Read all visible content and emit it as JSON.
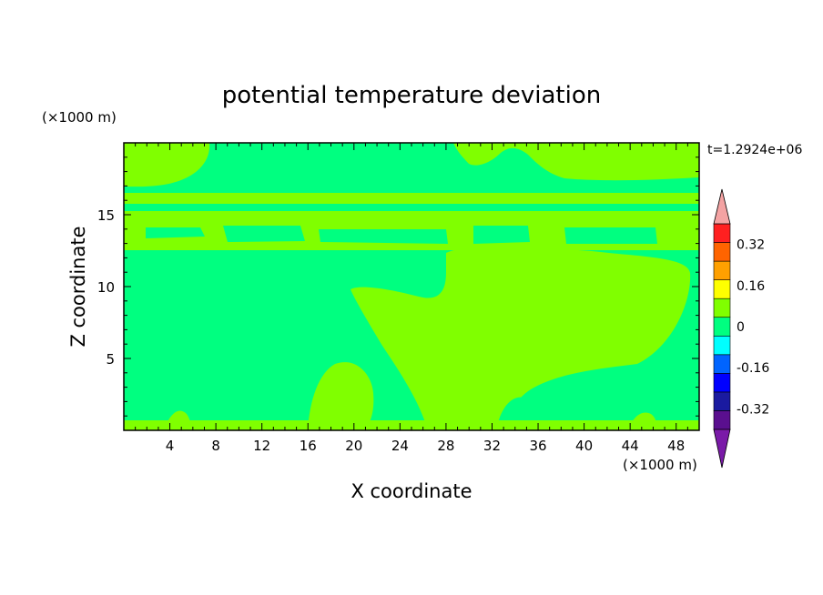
{
  "chart_data": {
    "type": "heatmap",
    "title": "potential temperature deviation",
    "xlabel": "X coordinate",
    "ylabel": "Z coordinate",
    "x_unit": "(×1000 m)",
    "y_unit": "(×1000 m)",
    "time_label": "t=1.2924e+06",
    "xlim": [
      0,
      50
    ],
    "ylim": [
      0,
      20
    ],
    "x_ticks": [
      4,
      8,
      12,
      16,
      20,
      24,
      28,
      32,
      36,
      40,
      44,
      48
    ],
    "y_ticks": [
      5,
      10,
      15
    ],
    "colorbar": {
      "levels": [
        -0.4,
        -0.32,
        -0.24,
        -0.16,
        -0.08,
        0,
        0.08,
        0.16,
        0.24,
        0.32,
        0.4
      ],
      "tick_labels": [
        "0.32",
        "0.16",
        "0",
        "-0.16",
        "-0.32"
      ],
      "colors_bottom_to_top": [
        "#5a0f8f",
        "#1a1aa0",
        "#0000ff",
        "#0064ff",
        "#00ffff",
        "#00ff80",
        "#80ff00",
        "#ffff00",
        "#ffa000",
        "#ff6400",
        "#ff2020"
      ],
      "under_color": "#7a1aa8",
      "over_color": "#f4a3a3"
    },
    "field": {
      "background_value_color": "#00ff80",
      "positive_region_color": "#80ff00"
    }
  },
  "colors": {
    "low_band": "#00ff80",
    "high_band": "#80ff00"
  }
}
